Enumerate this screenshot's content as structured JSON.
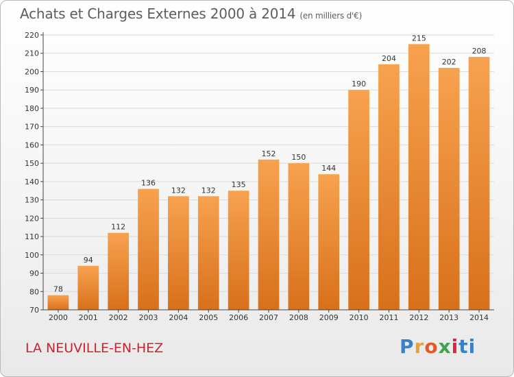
{
  "header": {
    "title": "Achats et Charges Externes 2000 à 2014",
    "subtitle": "(en milliers d'€)"
  },
  "footer": {
    "commune": "LA NEUVILLE-EN-HEZ",
    "logo_parts": [
      "P",
      "r",
      "o",
      "x",
      "i",
      "ti"
    ]
  },
  "colors": {
    "bar_light": "#f7a24f",
    "bar_dark": "#d8701b",
    "grid": "#d9d9d9",
    "axis": "#444444",
    "commune": "#c8232e"
  },
  "chart_data": {
    "type": "bar",
    "categories": [
      "2000",
      "2001",
      "2002",
      "2003",
      "2004",
      "2005",
      "2006",
      "2007",
      "2008",
      "2009",
      "2010",
      "2011",
      "2012",
      "2013",
      "2014"
    ],
    "values": [
      78,
      94,
      112,
      136,
      132,
      132,
      135,
      152,
      150,
      144,
      190,
      204,
      215,
      202,
      208
    ],
    "title": "Achats et Charges Externes 2000 à 2014",
    "ylim": [
      70,
      220
    ],
    "yticks": [
      70,
      80,
      90,
      100,
      110,
      120,
      130,
      140,
      150,
      160,
      170,
      180,
      190,
      200,
      210,
      220
    ],
    "grid": true
  }
}
